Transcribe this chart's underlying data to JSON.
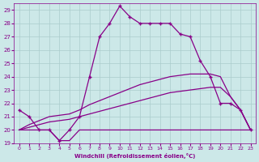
{
  "xlabel": "Windchill (Refroidissement éolien,°C)",
  "background_color": "#cce8e8",
  "grid_color": "#aacccc",
  "line_color": "#880088",
  "xlim": [
    -0.5,
    23.5
  ],
  "ylim": [
    19,
    29.5
  ],
  "yticks": [
    19,
    20,
    21,
    22,
    23,
    24,
    25,
    26,
    27,
    28,
    29
  ],
  "xticks": [
    0,
    1,
    2,
    3,
    4,
    5,
    6,
    7,
    8,
    9,
    10,
    11,
    12,
    13,
    14,
    15,
    16,
    17,
    18,
    19,
    20,
    21,
    22,
    23
  ],
  "temp_line": [
    21.5,
    21.0,
    20.0,
    20.0,
    19.2,
    20.0,
    21.0,
    24.0,
    27.0,
    28.0,
    29.3,
    28.5,
    28.0,
    28.0,
    28.0,
    28.0,
    27.2,
    27.0,
    25.2,
    24.0,
    22.0,
    22.0,
    21.5,
    20.0
  ],
  "windchill_line": [
    20.0,
    20.0,
    20.0,
    20.0,
    19.2,
    19.2,
    20.0,
    20.0,
    20.0,
    20.0,
    20.0,
    20.0,
    20.0,
    20.0,
    20.0,
    20.0,
    20.0,
    20.0,
    20.0,
    20.0,
    20.0,
    20.0,
    20.0,
    20.0
  ],
  "linear_line1": [
    20.0,
    20.2,
    20.4,
    20.6,
    20.7,
    20.8,
    21.0,
    21.2,
    21.4,
    21.6,
    21.8,
    22.0,
    22.2,
    22.4,
    22.6,
    22.8,
    22.9,
    23.0,
    23.1,
    23.2,
    23.2,
    22.5,
    21.5,
    20.0
  ],
  "linear_line2": [
    20.0,
    20.4,
    20.7,
    21.0,
    21.1,
    21.2,
    21.5,
    21.9,
    22.2,
    22.5,
    22.8,
    23.1,
    23.4,
    23.6,
    23.8,
    24.0,
    24.1,
    24.2,
    24.2,
    24.2,
    24.0,
    22.5,
    21.5,
    20.0
  ]
}
